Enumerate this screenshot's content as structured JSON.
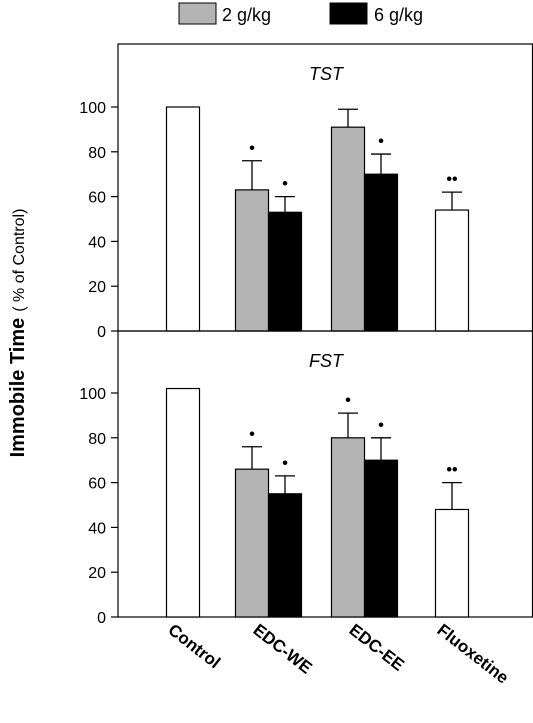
{
  "chart_data": {
    "type": "bar",
    "ylabel": "Immobile Time",
    "ylabel_unit": "( % of Control)",
    "ylim": [
      0,
      110
    ],
    "yticks": [
      0,
      20,
      40,
      60,
      80,
      100
    ],
    "categories": [
      "Control",
      "EDC-WE",
      "EDC-EE",
      "Fluoxetine"
    ],
    "legend": {
      "placement": "top",
      "entries": [
        {
          "name": "2 g/kg",
          "color": "#b4b4b4"
        },
        {
          "name": "6 g/kg",
          "color": "#000000"
        }
      ]
    },
    "panels": [
      {
        "title": "TST",
        "bars": [
          {
            "category": "Control",
            "series": "Control",
            "value": 100,
            "error": 0,
            "sig": ""
          },
          {
            "category": "EDC-WE",
            "series": "2 g/kg",
            "value": 63,
            "error": 13,
            "sig": "•"
          },
          {
            "category": "EDC-WE",
            "series": "6 g/kg",
            "value": 53,
            "error": 7,
            "sig": "•"
          },
          {
            "category": "EDC-EE",
            "series": "2 g/kg",
            "value": 91,
            "error": 8,
            "sig": ""
          },
          {
            "category": "EDC-EE",
            "series": "6 g/kg",
            "value": 70,
            "error": 9,
            "sig": "•"
          },
          {
            "category": "Fluoxetine",
            "series": "Fluoxetine",
            "value": 54,
            "error": 8,
            "sig": "••"
          }
        ]
      },
      {
        "title": "FST",
        "bars": [
          {
            "category": "Control",
            "series": "Control",
            "value": 102,
            "error": 0,
            "sig": ""
          },
          {
            "category": "EDC-WE",
            "series": "2 g/kg",
            "value": 66,
            "error": 10,
            "sig": "•"
          },
          {
            "category": "EDC-WE",
            "series": "6 g/kg",
            "value": 55,
            "error": 8,
            "sig": "•"
          },
          {
            "category": "EDC-EE",
            "series": "2 g/kg",
            "value": 80,
            "error": 11,
            "sig": "•"
          },
          {
            "category": "EDC-EE",
            "series": "6 g/kg",
            "value": 70,
            "error": 10,
            "sig": "•"
          },
          {
            "category": "Fluoxetine",
            "series": "Fluoxetine",
            "value": 48,
            "error": 12,
            "sig": "••"
          }
        ]
      }
    ]
  }
}
